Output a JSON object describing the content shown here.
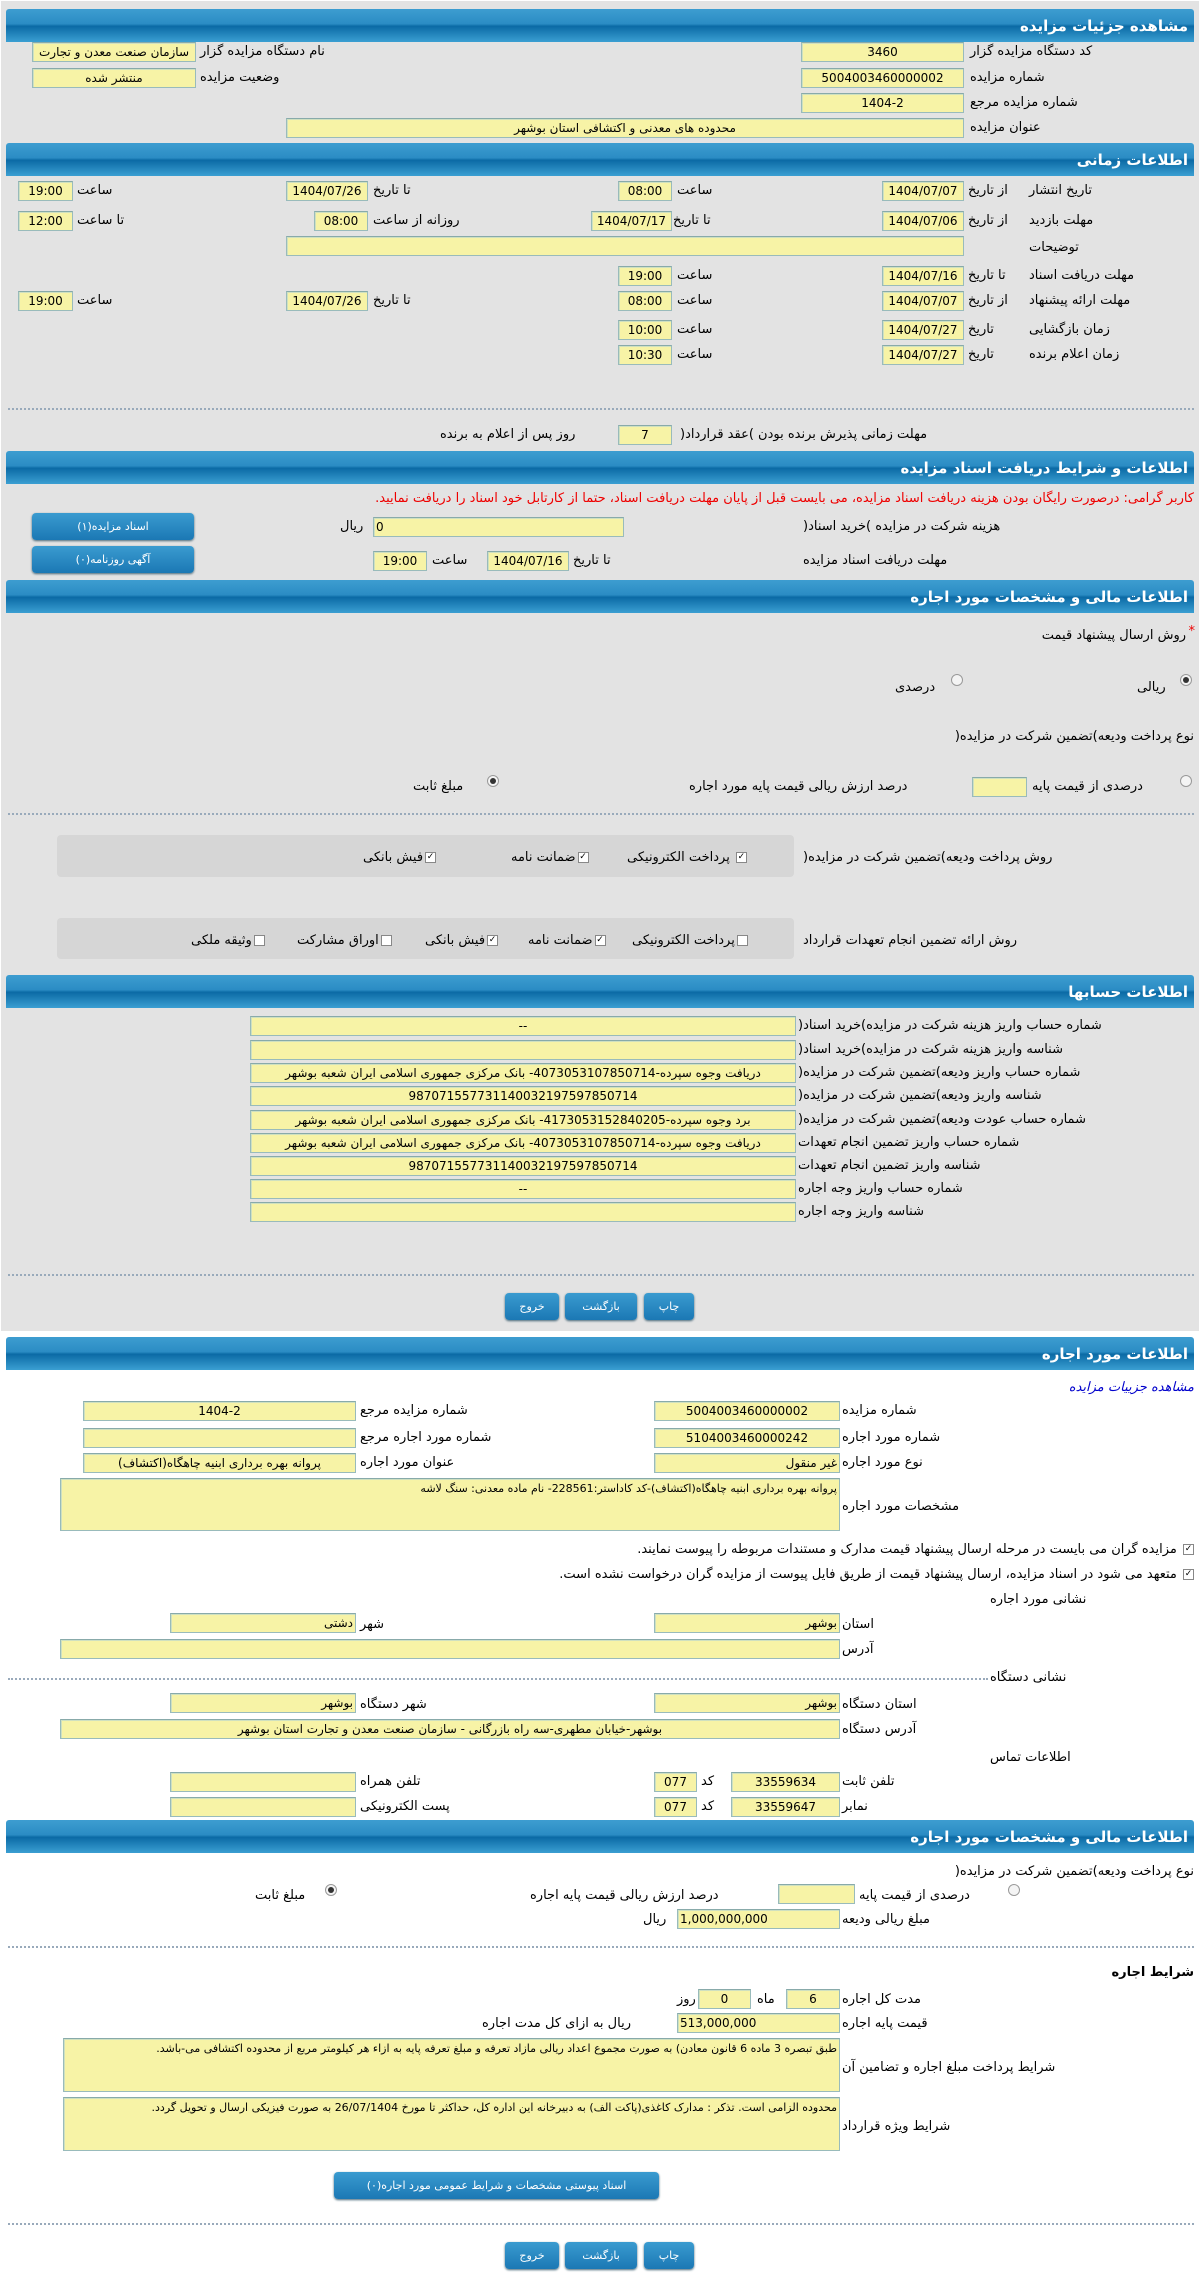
{
  "colors": {
    "header": "#2b8cc4",
    "field": "#f7f3a6",
    "background": "#e3e3e3",
    "warning": "#e00000"
  },
  "s1": {
    "title": "مشاهده جزئیات مزایده",
    "org_code_label": "کد دستگاه مزایده گزار",
    "org_code": "3460",
    "org_name_label": "نام دستگاه مزایده گزار",
    "org_name": "سازمان صنعت معدن و تجارت",
    "auction_no_label": "شماره مزایده",
    "auction_no": "5004003460000002",
    "status_label": "وضعیت مزایده",
    "status": "منتشر شده",
    "ref_no_label": "شماره مزایده مرجع",
    "ref_no": "1404-2",
    "subject_label": "عنوان مزایده",
    "subject": "محدوده های معدنی و اکتشافی استان بوشهر"
  },
  "s2": {
    "title": "اطلاعات زمانی",
    "from_date": "از تاریخ",
    "to_date": "تا تاریخ",
    "date": "تاریخ",
    "hour": "ساعت",
    "to_hour": "تا ساعت",
    "daily_from_hour": "روزانه از ساعت",
    "publish": {
      "label": "تاریخ انتشار",
      "from": "1404/07/07",
      "from_time": "08:00",
      "to": "1404/07/26",
      "to_time": "19:00"
    },
    "visit": {
      "label": "مهلت بازدید",
      "from": "1404/07/06",
      "to": "1404/07/17",
      "daily_from": "08:00",
      "to_time": "12:00"
    },
    "notes_label": "توضیحات",
    "notes": "",
    "docs": {
      "label": "مهلت دریافت اسناد",
      "to": "1404/07/16",
      "time": "19:00"
    },
    "offer": {
      "label": "مهلت ارائه پیشنهاد",
      "from": "1404/07/07",
      "from_time": "08:00",
      "to": "1404/07/26",
      "to_time": "19:00"
    },
    "opening": {
      "label": "زمان بازگشایی",
      "date": "1404/07/27",
      "time": "10:00"
    },
    "winner": {
      "label": "زمان اعلام برنده",
      "date": "1404/07/27",
      "time": "10:30"
    },
    "accept_label": "مهلت زمانی پذیرش برنده بودن )عقد قرارداد(",
    "accept_days": "7",
    "accept_suffix": "روز پس از اعلام به برنده"
  },
  "s3": {
    "title": "اطلاعات و شرایط دریافت اسناد مزایده",
    "warning": "کاربر گرامی: درصورت رایگان بودن هزینه دریافت اسناد مزایده، می بایست قبل از پایان مهلت دریافت اسناد، حتما از کارتابل خود اسناد را دریافت نمایید.",
    "fee_label": "هزینه شرکت در مزایده )خرید اسناد(",
    "fee": "0",
    "rial": "ریال",
    "deadline_label": "مهلت دریافت اسناد مزایده",
    "to_date": "تا تاریخ",
    "deadline_date": "1404/07/16",
    "hour": "ساعت",
    "deadline_time": "19:00",
    "docs_button": "اسناد مزایده(۱)",
    "ads_button": "آگهی روزنامه(۰)"
  },
  "s4": {
    "title": "اطلاعات مالی و مشخصات مورد اجاره",
    "price_method_label": "روش ارسال پیشنهاد قیمت",
    "required": "*",
    "rial_option": "ریالی",
    "percent_option": "درصدی",
    "deposit_type_label": "نوع پرداخت ودیعه)تضمین شرکت در مزایده(",
    "percent_of_base": "درصدی از قیمت پایه",
    "percent_text": "درصد ارزش ریالی قیمت پایه مورد اجاره",
    "fixed_amount": "مبلغ ثابت",
    "deposit_method_label": "روش پرداخت ودیعه)تضمین شرکت در مزایده(",
    "deposit_methods": [
      {
        "label": "پرداخت الکترونیکی",
        "checked": true
      },
      {
        "label": "ضمانت نامه",
        "checked": true
      },
      {
        "label": "فیش بانکی",
        "checked": true
      }
    ],
    "guarantee_label": "روش ارائه تضمین انجام تعهدات قرارداد",
    "guarantee_methods": [
      {
        "label": "پرداخت الکترونیکی",
        "checked": false
      },
      {
        "label": "ضمانت نامه",
        "checked": true
      },
      {
        "label": "فیش بانکی",
        "checked": true
      },
      {
        "label": "اوراق مشارکت",
        "checked": false
      },
      {
        "label": "وثیقه ملکی",
        "checked": false
      }
    ]
  },
  "s5": {
    "title": "اطلاعات حسابها",
    "rows": [
      {
        "label": "شماره حساب واریز هزینه شرکت در مزایده)خرید اسناد(",
        "value": "--"
      },
      {
        "label": "شناسه واریز هزینه شرکت در مزایده)خرید اسناد(",
        "value": ""
      },
      {
        "label": "شماره حساب واریز ودیعه)تضمین شرکت در مزایده(",
        "value": "دریافت وجوه سپرده-4073053107850714- بانک مرکزی جمهوری اسلامی ایران شعبه بوشهر"
      },
      {
        "label": "شناسه واریز ودیعه)تضمین شرکت در مزایده(",
        "value": "987071557731140032197597850714"
      },
      {
        "label": "شماره حساب عودت ودیعه)تضمین شرکت در مزایده(",
        "value": "برد وجوه سپرده-4173053152840205- بانک مرکزی جمهوری اسلامی ایران شعبه بوشهر"
      },
      {
        "label": "شماره حساب واریز تضمین انجام تعهدات",
        "value": "دریافت وجوه سپرده-4073053107850714- بانک مرکزی جمهوری اسلامی ایران شعبه بوشهر"
      },
      {
        "label": "شناسه واریز تضمین انجام تعهدات",
        "value": "987071557731140032197597850714"
      },
      {
        "label": "شماره حساب واریز وجه اجاره",
        "value": "--"
      },
      {
        "label": "شناسه واریز وجه اجاره",
        "value": ""
      }
    ]
  },
  "actions": {
    "print": "چاپ",
    "back": "بازگشت",
    "exit": "خروج"
  },
  "s6": {
    "title": "اطلاعات مورد اجاره",
    "link": "مشاهده جزییات مزایده",
    "auction_no_label": "شماره مزایده",
    "auction_no": "5004003460000002",
    "ref_no_label": "شماره مزایده مرجع",
    "ref_no": "1404-2",
    "item_no_label": "شماره مورد اجاره",
    "item_no": "5104003460000242",
    "item_ref_label": "شماره مورد اجاره مرجع",
    "item_ref": "",
    "item_type_label": "نوع مورد اجاره",
    "item_type": "غیر منقول",
    "item_title_label": "عنوان مورد اجاره",
    "item_title": "پروانه بهره برداری ابنیه چاهگاه(اکتشاف)",
    "spec_label": "مشخصات مورد اجاره",
    "spec": "پروانه بهره برداری ابنیه چاهگاه(اکتشاف)-کد کاداستر:228561- نام ماده معدنی: سنگ لاشه",
    "check1": "مزایده گران می بایست در مرحله ارسال پیشنهاد قیمت مدارک و مستندات مربوطه را پیوست نمایند.",
    "check2": "متعهد می شود در اسناد مزایده، ارسال پیشنهاد قیمت از طریق فایل پیوست از مزایده گران درخواست نشده است.",
    "item_address_title": "نشانی مورد اجاره",
    "province_label": "استان",
    "province": "بوشهر",
    "city_label": "شهر",
    "city": "دشتی",
    "address_label": "آدرس",
    "address": "",
    "org_address_title": "نشانی دستگاه",
    "org_province_label": "استان دستگاه",
    "org_province": "بوشهر",
    "org_city_label": "شهر دستگاه",
    "org_city": "بوشهر",
    "org_address_label": "آدرس دستگاه",
    "org_address": "بوشهر-خیابان مطهری-سه راه بازرگانی - سازمان صنعت معدن و تجارت استان بوشهر",
    "contact_title": "اطلاعات تماس",
    "phone_label": "تلفن ثابت",
    "phone": "33559634",
    "code_label": "کد",
    "phone_code": "077",
    "mobile_label": "تلفن همراه",
    "mobile": "",
    "fax_label": "نمابر",
    "fax": "33559647",
    "fax_code": "077",
    "email_label": "پست الکترونیکی",
    "email": ""
  },
  "s7": {
    "title": "اطلاعات مالی و مشخصات مورد اجاره",
    "deposit_type_label": "نوع پرداخت ودیعه)تضمین شرکت در مزایده(",
    "percent_of_base": "درصدی از قیمت پایه",
    "percent_text": "درصد ارزش ریالی قیمت پایه اجاره",
    "fixed_amount": "مبلغ ثابت",
    "deposit_amount_label": "مبلغ ریالی ودیعه",
    "deposit_amount": "1,000,000,000",
    "rial": "ریال",
    "terms_title": "شرایط اجاره",
    "duration_label": "مدت کل اجاره",
    "months": "6",
    "month_label": "ماه",
    "days": "0",
    "day_label": "روز",
    "base_price_label": "قیمت پایه اجاره",
    "base_price": "513,000,000",
    "base_price_suffix": "ریال به ازای کل مدت اجاره",
    "payment_terms_label": "شرایط پرداخت مبلغ اجاره و تضامین آن",
    "payment_terms": "طبق تبصره 3 ماده 6 قانون معادن) به صورت مجموع اعداد ریالی مازاد تعرفه و مبلغ تعرفه پایه به ازاء هر کیلومتر مربع از محدوده اکتشافی می-باشد.",
    "special_terms_label": "شرایط ویژه قرارداد",
    "special_terms": "محدوده الزامی است. تذکر : مدارک کاغذی(پاکت الف) به دبیرخانه این اداره کل، حداکثر تا مورخ 26/07/1404 به صورت فیزیکی ارسال و تحویل گردد.",
    "attachment_button": "اسناد پیوستی مشخصات و شرایط عمومی مورد اجاره(۰)"
  }
}
